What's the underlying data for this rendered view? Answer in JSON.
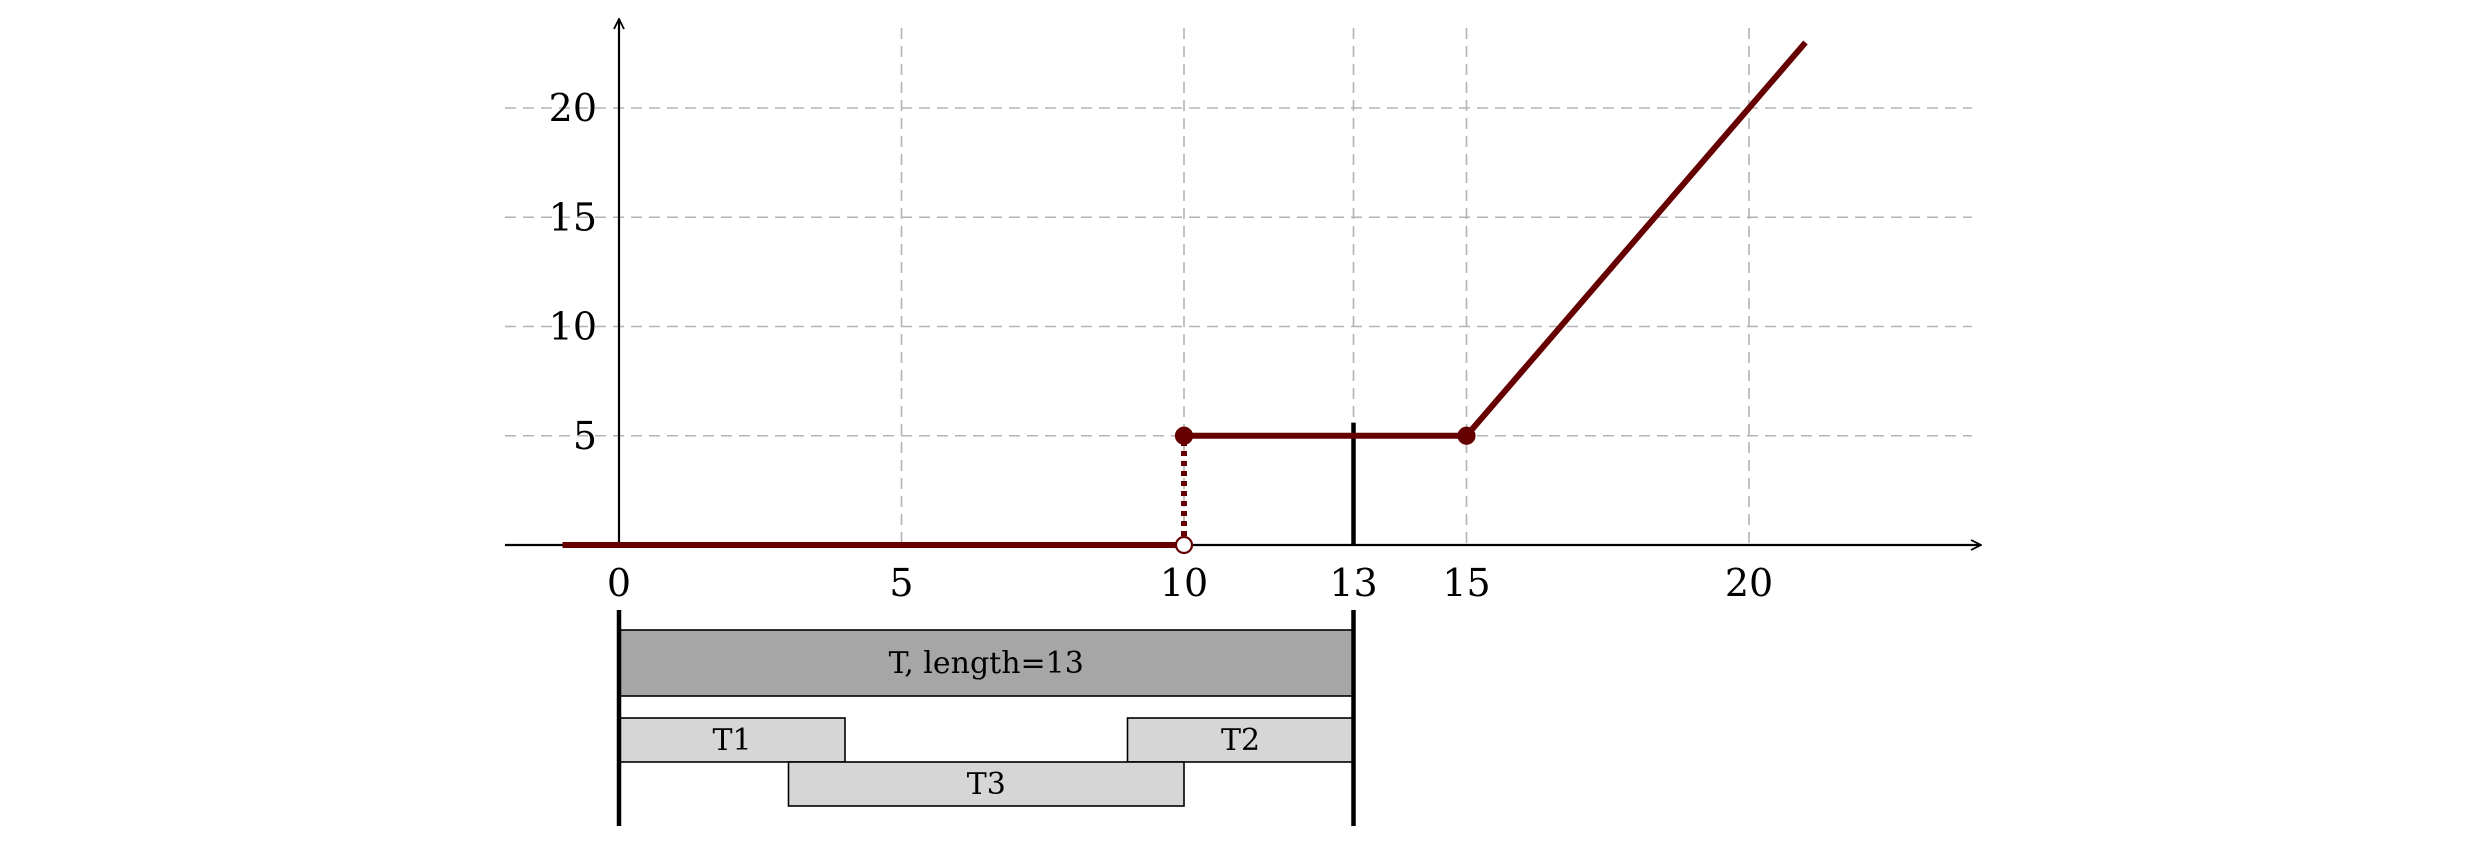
{
  "chart_data": {
    "type": "line",
    "title": "",
    "xlabel": "",
    "ylabel": "",
    "xlim": [
      -2,
      24
    ],
    "ylim": [
      0,
      24
    ],
    "grid": true,
    "xticks": [
      0,
      5,
      10,
      13,
      15,
      20
    ],
    "yticks": [
      5,
      10,
      15,
      20
    ],
    "colors": {
      "series": "#660000",
      "dark_bar": "#a6a6a6",
      "light_bar": "#d6d6d6",
      "grid": "#b3b3b3"
    },
    "series": [
      {
        "segments": [
          [
            [
              -1,
              0
            ],
            [
              10,
              0
            ]
          ],
          [
            [
              10,
              5
            ],
            [
              15,
              5
            ]
          ],
          [
            [
              15,
              5
            ],
            [
              21,
              23
            ]
          ]
        ],
        "jump": {
          "x": 10,
          "from": 0,
          "to": 5,
          "style": "dotted"
        },
        "points": [
          {
            "x": 10,
            "y": 0,
            "filled": false
          },
          {
            "x": 10,
            "y": 5,
            "filled": true
          },
          {
            "x": 15,
            "y": 5,
            "filled": true
          }
        ]
      }
    ],
    "markers": [
      {
        "x": 13,
        "y_from": 0,
        "y_to": 5.6
      }
    ],
    "bars": [
      {
        "label": "T, length=13",
        "start": 0,
        "end": 13,
        "style": "dark"
      },
      {
        "label": "T1",
        "start": 0,
        "end": 4,
        "style": "light"
      },
      {
        "label": "T2",
        "start": 9,
        "end": 13,
        "style": "light"
      },
      {
        "label": "T3",
        "start": 3,
        "end": 10,
        "style": "light"
      }
    ],
    "bar_bounds": [
      0,
      13
    ]
  }
}
